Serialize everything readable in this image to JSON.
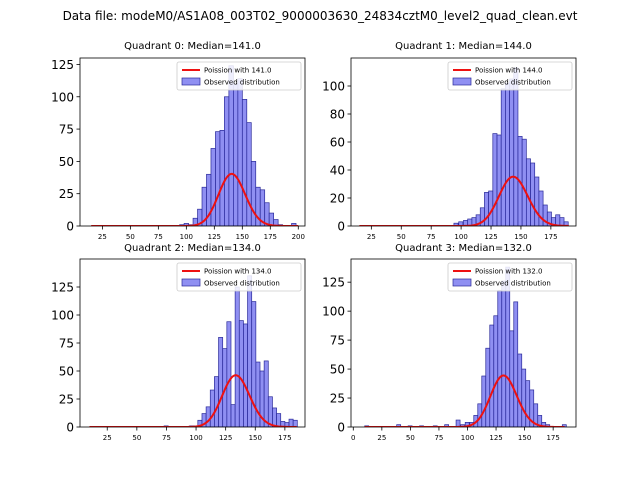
{
  "figure": {
    "suptitle": "Data file: modeM0/AS1A08_003T02_9000003630_24834cztM0_level2_quad_clean.evt",
    "colors": {
      "hist_fill": "#7b7bf0",
      "hist_edge": "#2a2a9a",
      "poisson_line": "#ee1111"
    }
  },
  "chart_data": [
    {
      "type": "bar",
      "title": "Quadrant 0: Median=141.0",
      "median": 141.0,
      "xlim": [
        5,
        206
      ],
      "ylim": [
        0,
        130
      ],
      "xticks": [
        25,
        50,
        75,
        100,
        125,
        150,
        175,
        200
      ],
      "yticks": [
        0,
        25,
        50,
        75,
        100,
        125
      ],
      "legend": {
        "position": "top-right",
        "entries": [
          "Poission with 141.0",
          "Observed distribution"
        ]
      },
      "bin_width": 4,
      "bins": [
        [
          94,
          1
        ],
        [
          98,
          2
        ],
        [
          102,
          1
        ],
        [
          106,
          6
        ],
        [
          110,
          13
        ],
        [
          114,
          30
        ],
        [
          118,
          40
        ],
        [
          122,
          60
        ],
        [
          126,
          73
        ],
        [
          130,
          74
        ],
        [
          134,
          100
        ],
        [
          138,
          124
        ],
        [
          142,
          110
        ],
        [
          146,
          114
        ],
        [
          150,
          98
        ],
        [
          154,
          80
        ],
        [
          158,
          50
        ],
        [
          162,
          30
        ],
        [
          166,
          28
        ],
        [
          170,
          18
        ],
        [
          174,
          10
        ],
        [
          178,
          5
        ],
        [
          182,
          1
        ],
        [
          194,
          2
        ]
      ],
      "poisson_lambda": 141.0,
      "poisson_total": 1200,
      "poisson_range": [
        15,
        200
      ]
    },
    {
      "type": "bar",
      "title": "Quadrant 1: Median=144.0",
      "median": 144.0,
      "xlim": [
        8,
        196
      ],
      "ylim": [
        0,
        120
      ],
      "xticks": [
        25,
        50,
        75,
        100,
        125,
        150,
        175
      ],
      "yticks": [
        0,
        20,
        40,
        60,
        80,
        100
      ],
      "legend": {
        "position": "top-right",
        "entries": [
          "Poission with 144.0",
          "Observed distribution"
        ]
      },
      "bin_width": 3.5,
      "bins": [
        [
          94,
          2
        ],
        [
          98,
          3
        ],
        [
          102,
          4
        ],
        [
          105.5,
          5
        ],
        [
          109,
          6
        ],
        [
          112.5,
          8
        ],
        [
          116,
          13
        ],
        [
          119.5,
          24
        ],
        [
          123,
          25
        ],
        [
          126.5,
          66
        ],
        [
          130,
          65
        ],
        [
          133.5,
          98
        ],
        [
          137,
          102
        ],
        [
          140.5,
          105
        ],
        [
          144,
          113
        ],
        [
          147.5,
          64
        ],
        [
          151,
          62
        ],
        [
          154.5,
          48
        ],
        [
          158,
          45
        ],
        [
          161.5,
          35
        ],
        [
          165,
          25
        ],
        [
          168.5,
          15
        ],
        [
          172,
          10
        ],
        [
          175.5,
          6
        ],
        [
          179,
          8
        ],
        [
          182.5,
          6
        ],
        [
          186,
          3
        ]
      ],
      "poisson_lambda": 144.0,
      "poisson_total": 1060,
      "poisson_range": [
        15,
        190
      ]
    },
    {
      "type": "bar",
      "title": "Quadrant 2: Median=134.0",
      "median": 134.0,
      "xlim": [
        2,
        192
      ],
      "ylim": [
        0,
        150
      ],
      "xticks": [
        25,
        50,
        75,
        100,
        125,
        150,
        175
      ],
      "yticks": [
        0,
        25,
        50,
        75,
        100,
        125
      ],
      "legend": {
        "position": "top-right",
        "entries": [
          "Poission with 134.0",
          "Observed distribution"
        ]
      },
      "bin_width": 3.5,
      "bins": [
        [
          73,
          1
        ],
        [
          94.5,
          1
        ],
        [
          98,
          1
        ],
        [
          101.5,
          6
        ],
        [
          105,
          12
        ],
        [
          108.5,
          18
        ],
        [
          112,
          33
        ],
        [
          115.5,
          45
        ],
        [
          119,
          80
        ],
        [
          122.5,
          70
        ],
        [
          126,
          94
        ],
        [
          129.5,
          20
        ],
        [
          133,
          125
        ],
        [
          136.5,
          95
        ],
        [
          140,
          92
        ],
        [
          143.5,
          135
        ],
        [
          147,
          112
        ],
        [
          150.5,
          58
        ],
        [
          154,
          50
        ],
        [
          157.5,
          59
        ],
        [
          161,
          27
        ],
        [
          164.5,
          17
        ],
        [
          168,
          12
        ],
        [
          171.5,
          5
        ],
        [
          175,
          4
        ],
        [
          178.5,
          7
        ],
        [
          182,
          6
        ]
      ],
      "poisson_lambda": 134.0,
      "poisson_total": 1340,
      "poisson_range": [
        10,
        185
      ]
    },
    {
      "type": "bar",
      "title": "Quadrant 3: Median=132.0",
      "median": 132.0,
      "xlim": [
        -2,
        195
      ],
      "ylim": [
        0,
        145
      ],
      "xticks": [
        0,
        25,
        50,
        75,
        100,
        125,
        150,
        175
      ],
      "yticks": [
        0,
        25,
        50,
        75,
        100,
        125
      ],
      "legend": {
        "position": "top-right",
        "entries": [
          "Poission with 132.0",
          "Observed distribution"
        ]
      },
      "bin_width": 3.5,
      "bins": [
        [
          10,
          1
        ],
        [
          38,
          2
        ],
        [
          48,
          1
        ],
        [
          58,
          1
        ],
        [
          70,
          1
        ],
        [
          80,
          2
        ],
        [
          90,
          6
        ],
        [
          94,
          2
        ],
        [
          98,
          4
        ],
        [
          102,
          4
        ],
        [
          105.5,
          10
        ],
        [
          109,
          20
        ],
        [
          112.5,
          44
        ],
        [
          116,
          68
        ],
        [
          119.5,
          88
        ],
        [
          123,
          96
        ],
        [
          126.5,
          118
        ],
        [
          130,
          126
        ],
        [
          133.5,
          138
        ],
        [
          137,
          83
        ],
        [
          140.5,
          108
        ],
        [
          144,
          63
        ],
        [
          147.5,
          50
        ],
        [
          151,
          40
        ],
        [
          154.5,
          32
        ],
        [
          158,
          20
        ],
        [
          161.5,
          10
        ],
        [
          165,
          4
        ],
        [
          168.5,
          2
        ],
        [
          183,
          2
        ]
      ],
      "poisson_lambda": 132.0,
      "poisson_total": 1280,
      "poisson_range": [
        10,
        185
      ]
    }
  ]
}
